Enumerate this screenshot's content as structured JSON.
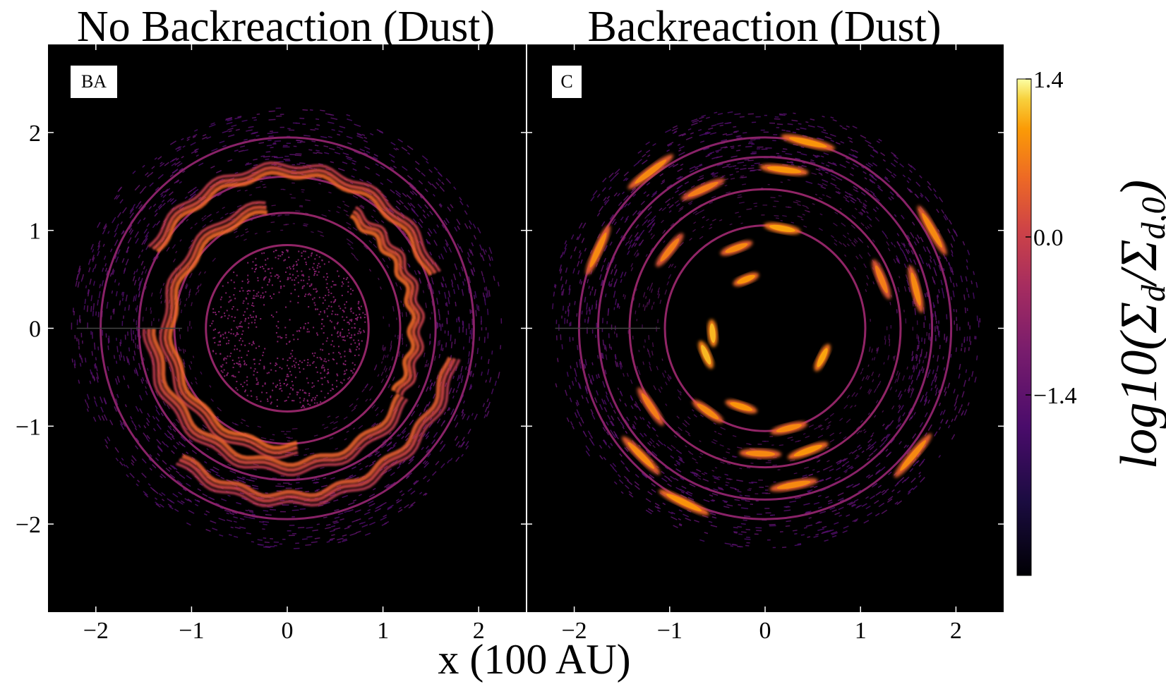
{
  "chart_data": {
    "type": "heatmap",
    "xlabel": "x (100 AU)",
    "xlim": [
      -2.5,
      2.5
    ],
    "ylim": [
      -2.9,
      2.9
    ],
    "x_ticks": [
      -2,
      -1,
      0,
      1,
      2
    ],
    "y_ticks": [
      2,
      1,
      0,
      -1,
      -2
    ],
    "x_tick_labels": [
      "−2",
      "−1",
      "0",
      "1",
      "2"
    ],
    "y_tick_labels": [
      "2",
      "1",
      "0",
      "−1",
      "−2"
    ],
    "colorscale": "inferno",
    "colorbar": {
      "label": "log10(Σd/Σd,0)",
      "label_base": "log10(Σ",
      "label_sub1": "d",
      "label_mid": "/Σ",
      "label_sub2": "d,0",
      "label_end": ")",
      "range": [
        -3.0,
        1.4
      ],
      "ticks": [
        1.4,
        0.0,
        -1.4
      ],
      "tick_labels": [
        "1.4",
        "0.0",
        "−1.4"
      ]
    },
    "panels": [
      {
        "title": "No Backreaction (Dust)",
        "label": "BA",
        "rings": [
          {
            "r": 0.85,
            "level": -0.7
          },
          {
            "r": 1.18,
            "level": -0.7
          },
          {
            "r": 1.55,
            "level": -0.8
          },
          {
            "r": 1.95,
            "level": -0.8
          }
        ],
        "spiral_arcs": [
          {
            "r": 1.25,
            "start_deg": 100,
            "end_deg": 275,
            "level": 0.5
          },
          {
            "r": 1.42,
            "start_deg": 180,
            "end_deg": 330,
            "level": 0.4
          },
          {
            "r": 1.62,
            "start_deg": 20,
            "end_deg": 150,
            "level": 0.45
          },
          {
            "r": 1.75,
            "start_deg": 230,
            "end_deg": 350,
            "level": 0.35
          },
          {
            "r": 1.35,
            "start_deg": 330,
            "end_deg": 420,
            "level": 0.5
          }
        ]
      },
      {
        "title": "Backreaction (Dust)",
        "label": "C",
        "rings": [
          {
            "r": 1.05,
            "level": -0.7
          },
          {
            "r": 1.42,
            "level": -0.7
          },
          {
            "r": 1.75,
            "level": -0.8
          },
          {
            "r": 1.95,
            "level": -0.8
          }
        ],
        "clumps": [
          {
            "x": -0.3,
            "y": 0.82,
            "level": 0.8
          },
          {
            "x": -0.2,
            "y": 0.5,
            "level": 0.9
          },
          {
            "x": -0.55,
            "y": -0.05,
            "level": 1.1
          },
          {
            "x": -0.62,
            "y": -0.27,
            "level": 1.1
          },
          {
            "x": 0.6,
            "y": -0.3,
            "level": 1.0
          },
          {
            "x": -0.25,
            "y": -0.8,
            "level": 0.9
          },
          {
            "x": -0.6,
            "y": -0.85,
            "level": 0.8
          },
          {
            "x": 0.25,
            "y": -1.02,
            "level": 0.8
          },
          {
            "x": 0.18,
            "y": 1.02,
            "level": 1.0
          },
          {
            "x": 0.45,
            "y": -1.25,
            "level": 0.9
          },
          {
            "x": -0.05,
            "y": -1.28,
            "level": 0.8
          },
          {
            "x": -1.0,
            "y": 0.8,
            "level": 0.7
          },
          {
            "x": 1.22,
            "y": 0.5,
            "level": 0.7
          },
          {
            "x": -1.2,
            "y": -0.8,
            "level": 0.7
          },
          {
            "x": 0.2,
            "y": 1.62,
            "level": 0.9
          },
          {
            "x": -0.65,
            "y": 1.42,
            "level": 0.7
          },
          {
            "x": 1.58,
            "y": 0.4,
            "level": 0.8
          },
          {
            "x": -1.2,
            "y": 1.6,
            "level": 0.8
          },
          {
            "x": 0.45,
            "y": 1.9,
            "level": 0.9
          },
          {
            "x": 1.75,
            "y": 1.0,
            "level": 0.8
          },
          {
            "x": -1.75,
            "y": 0.8,
            "level": 0.8
          },
          {
            "x": -1.3,
            "y": -1.3,
            "level": 0.8
          },
          {
            "x": 0.3,
            "y": -1.6,
            "level": 0.8
          },
          {
            "x": 1.55,
            "y": -1.3,
            "level": 0.8
          },
          {
            "x": -0.85,
            "y": -1.78,
            "level": 0.9
          }
        ]
      }
    ]
  }
}
